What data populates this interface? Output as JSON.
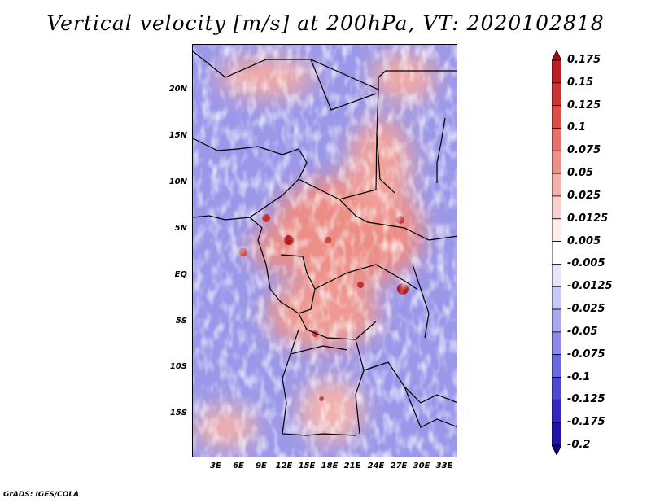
{
  "title": "Vertical velocity [m/s] at 200hPa, VT: 2020102818",
  "credit": "GrADS: IGES/COLA",
  "lat_labels": [
    "20N",
    "15N",
    "10N",
    "5N",
    "EQ",
    "5S",
    "10S",
    "15S"
  ],
  "lon_labels": [
    "3E",
    "6E",
    "9E",
    "12E",
    "15E",
    "18E",
    "21E",
    "24E",
    "27E",
    "30E",
    "33E"
  ],
  "colorbar": {
    "labels": [
      "0.175",
      "0.15",
      "0.125",
      "0.1",
      "0.075",
      "0.05",
      "0.025",
      "0.0125",
      "0.005",
      "-0.005",
      "-0.0125",
      "-0.025",
      "-0.05",
      "-0.075",
      "-0.1",
      "-0.125",
      "-0.175",
      "-0.2"
    ],
    "colors": [
      "#a50f15",
      "#bb1e24",
      "#cf3434",
      "#dc4e4a",
      "#e6706a",
      "#ee908a",
      "#f4b0ab",
      "#f9d0cd",
      "#fdeceb",
      "#ffffff",
      "#e5e5fb",
      "#c9c8f5",
      "#aaa8ee",
      "#8b88e6",
      "#6c68dd",
      "#4f49d2",
      "#3328c2",
      "#2412a6",
      "#1a007d"
    ]
  }
}
